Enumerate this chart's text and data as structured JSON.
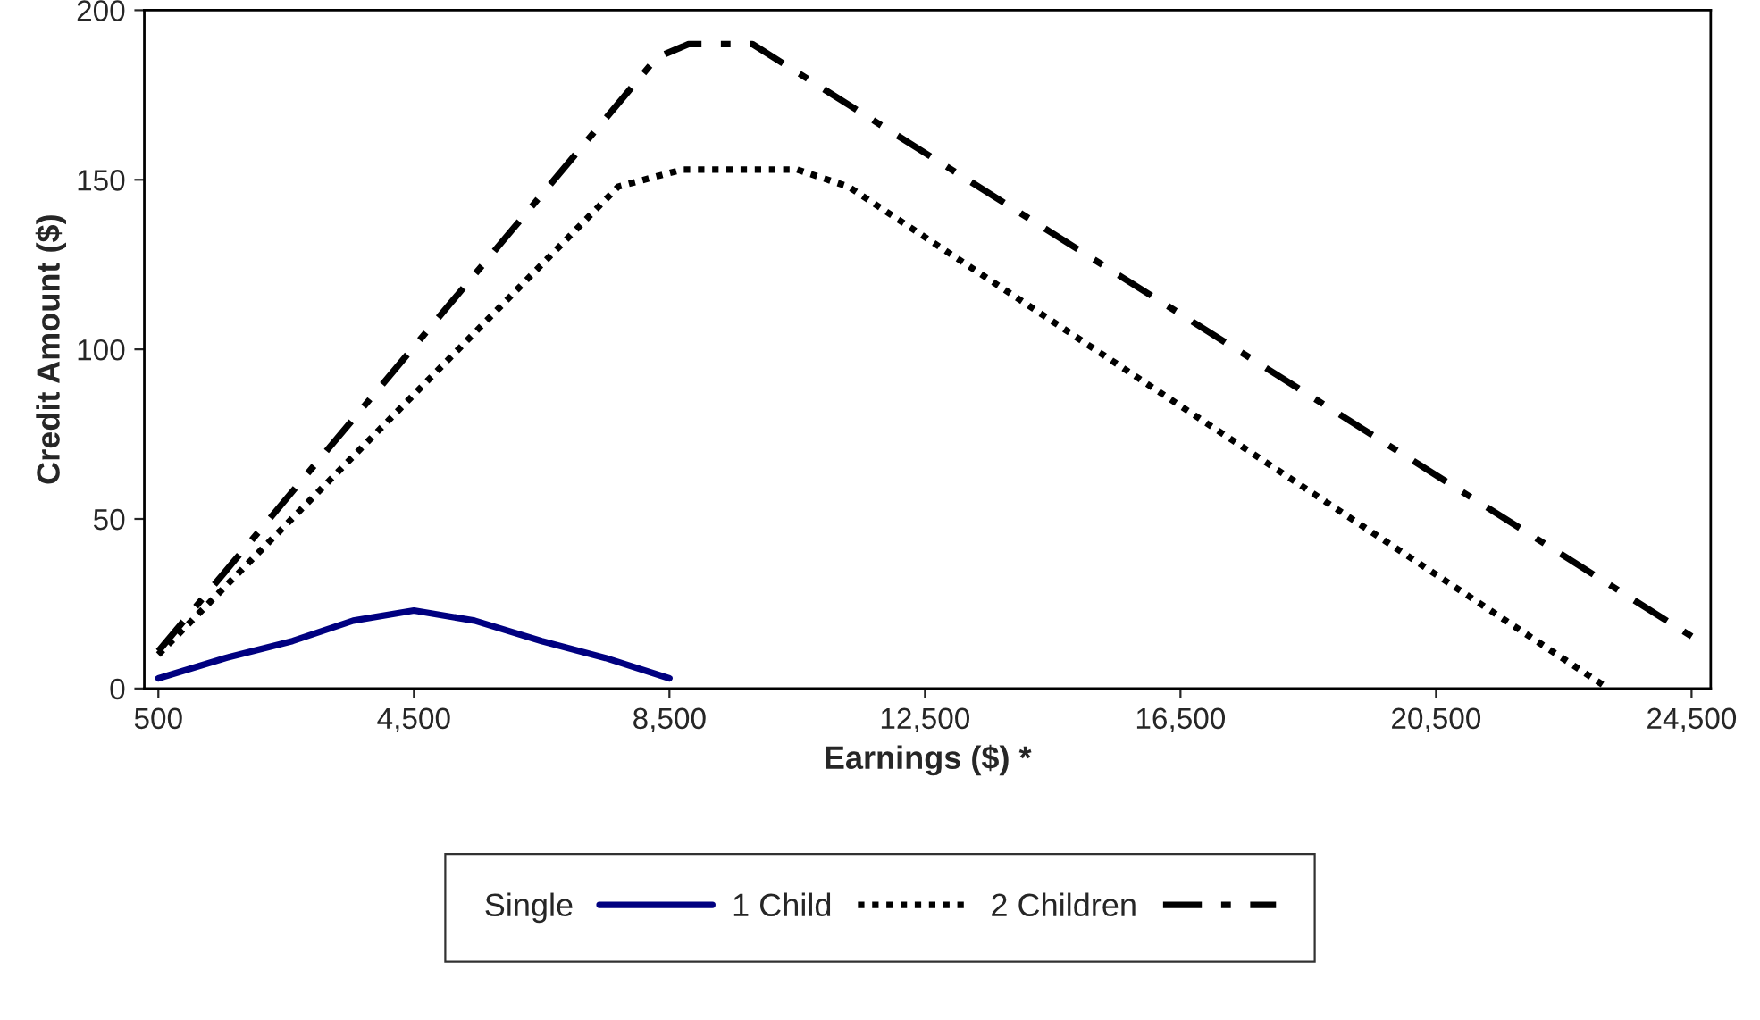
{
  "chart_data": {
    "type": "line",
    "xlabel": "Earnings ($) *",
    "ylabel": "Credit Amount ($)",
    "xlim": [
      280,
      24800
    ],
    "xticks": [
      {
        "value": 500,
        "label": "500"
      },
      {
        "value": 4500,
        "label": "4,500"
      },
      {
        "value": 8500,
        "label": "8,500"
      },
      {
        "value": 12500,
        "label": "12,500"
      },
      {
        "value": 16500,
        "label": "16,500"
      },
      {
        "value": 20500,
        "label": "20,500"
      },
      {
        "value": 24500,
        "label": "24,500"
      }
    ],
    "ylim": [
      0,
      200
    ],
    "yticks": [
      0,
      50,
      100,
      150,
      200
    ],
    "grid": false,
    "legend": "bottom",
    "marker": "none",
    "series": [
      {
        "name": "Single",
        "color": "#000080",
        "line_style": "solid",
        "x": [
          500,
          1550,
          2600,
          3550,
          4500,
          5450,
          6500,
          7500,
          8500
        ],
        "values": [
          3,
          9,
          14,
          20,
          23,
          20,
          14,
          9,
          3
        ]
      },
      {
        "name": "1 Child",
        "color": "#000000",
        "line_style": "dotted",
        "x": [
          500,
          7700,
          8700,
          10500,
          11300,
          23200
        ],
        "values": [
          10,
          148,
          153,
          153,
          148,
          0
        ]
      },
      {
        "name": "2 Children",
        "color": "#000000",
        "line_style": "dashdot",
        "x": [
          500,
          8300,
          8800,
          9800,
          24700
        ],
        "values": [
          11,
          186,
          190,
          190,
          13
        ]
      }
    ]
  }
}
